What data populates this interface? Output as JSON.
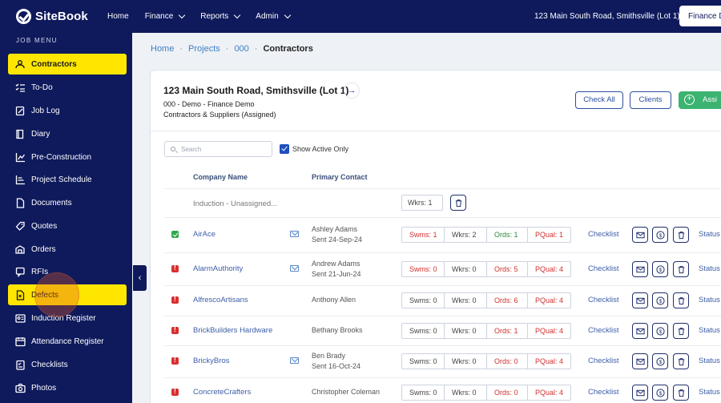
{
  "topbar": {
    "logo_text": "SiteBook",
    "nav": [
      "Home",
      "Finance",
      "Reports",
      "Admin"
    ],
    "address": "123 Main South Road, Smithsville (Lot 1)",
    "finance_button": "Finance D"
  },
  "sidebar": {
    "title": "JOB MENU",
    "items": [
      {
        "label": "Contractors",
        "icon": "contractors-icon"
      },
      {
        "label": "To-Do",
        "icon": "todo-icon"
      },
      {
        "label": "Job Log",
        "icon": "job-log-icon"
      },
      {
        "label": "Diary",
        "icon": "diary-icon"
      },
      {
        "label": "Pre-Construction",
        "icon": "chart-icon"
      },
      {
        "label": "Project Schedule",
        "icon": "schedule-icon"
      },
      {
        "label": "Documents",
        "icon": "document-icon"
      },
      {
        "label": "Quotes",
        "icon": "quotes-icon"
      },
      {
        "label": "Orders",
        "icon": "orders-icon"
      },
      {
        "label": "RFIs",
        "icon": "rfi-icon"
      },
      {
        "label": "Defects",
        "icon": "defects-icon"
      },
      {
        "label": "Induction Register",
        "icon": "induction-icon"
      },
      {
        "label": "Attendance Register",
        "icon": "calendar-icon"
      },
      {
        "label": "Checklists",
        "icon": "checklist-icon"
      },
      {
        "label": "Photos",
        "icon": "camera-icon"
      }
    ],
    "toggle": "‹"
  },
  "breadcrumb": [
    "Home",
    "Projects",
    "000",
    "Contractors"
  ],
  "card": {
    "title": "123 Main South Road, Smithsville (Lot 1)",
    "arrow": "→",
    "subtitle": "000 - Demo - Finance Demo",
    "subtitle2": "Contractors & Suppliers (Assigned)",
    "check_all": "Check All",
    "clients": "Clients",
    "assign": "Assi",
    "search_placeholder": "Search",
    "show_active": "Show Active Only",
    "col_company": "Company Name",
    "col_contact": "Primary Contact"
  },
  "induction_row": {
    "name": "Induction - Unassigned...",
    "wkrs": "Wkrs: 1"
  },
  "rows": [
    {
      "status": "ok",
      "name": "AirAce",
      "mail": true,
      "contact": "Ashley Adams",
      "sent": "Sent 24-Sep-24",
      "swms": "Swms: 1",
      "wkrs": "Wkrs: 2",
      "ords": "Ords: 1",
      "pqual": "PQual: 1",
      "swms_red": true,
      "ords_green": true
    },
    {
      "status": "bad",
      "name": "AlarmAuthority",
      "mail": true,
      "contact": "Andrew Adams",
      "sent": "Sent 21-Jun-24",
      "swms": "Swms: 0",
      "wkrs": "Wkrs: 0",
      "ords": "Ords: 5",
      "pqual": "PQual: 4",
      "swms_red": true,
      "ords_green": false
    },
    {
      "status": "bad",
      "name": "AlfrescoArtisans",
      "mail": false,
      "contact": "Anthony Allen",
      "sent": "",
      "swms": "Swms: 0",
      "wkrs": "Wkrs: 0",
      "ords": "Ords: 6",
      "pqual": "PQual: 4",
      "swms_red": false,
      "ords_green": false
    },
    {
      "status": "bad",
      "name": "BrickBuilders Hardware",
      "mail": false,
      "contact": "Bethany Brooks",
      "sent": "",
      "swms": "Swms: 0",
      "wkrs": "Wkrs: 0",
      "ords": "Ords: 1",
      "pqual": "PQual: 4",
      "swms_red": false,
      "ords_green": false
    },
    {
      "status": "bad",
      "name": "BrickyBros",
      "mail": true,
      "contact": "Ben Brady",
      "sent": "Sent 16-Oct-24",
      "swms": "Swms: 0",
      "wkrs": "Wkrs: 0",
      "ords": "Ords: 0",
      "pqual": "PQual: 4",
      "swms_red": false,
      "ords_green": false
    },
    {
      "status": "bad",
      "name": "ConcreteCrafters",
      "mail": false,
      "contact": "Christopher Coleman",
      "sent": "",
      "swms": "Swms: 0",
      "wkrs": "Wkrs: 0",
      "ords": "Ords: 0",
      "pqual": "PQual: 4",
      "swms_red": false,
      "ords_green": false
    }
  ],
  "row_labels": {
    "checklist": "Checklist",
    "status": "Status"
  }
}
